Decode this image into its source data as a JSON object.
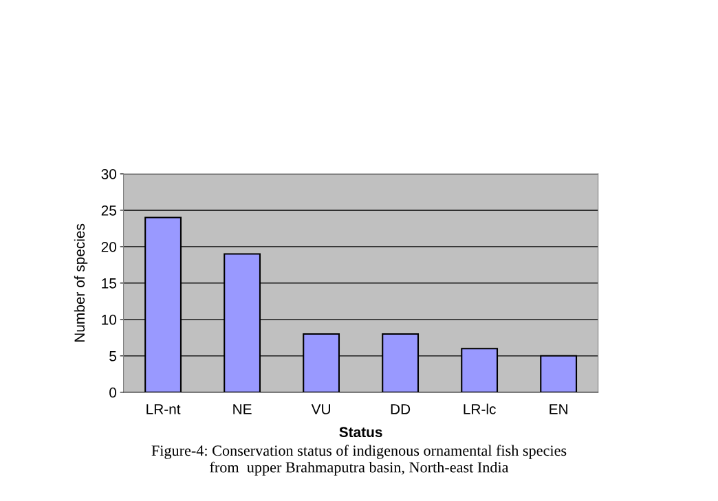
{
  "chart_data": {
    "type": "bar",
    "categories": [
      "LR-nt",
      "NE",
      "VU",
      "DD",
      "LR-lc",
      "EN"
    ],
    "values": [
      24,
      19,
      8,
      8,
      6,
      5
    ],
    "color": "#9999ff",
    "xlabel": "Status",
    "ylabel": "Number of species",
    "ylim": [
      0,
      30
    ],
    "yticks": [
      0,
      5,
      10,
      15,
      20,
      25,
      30
    ],
    "grid": "y",
    "annotations": [
      "Figure-4: Conservation status of indigenous ornamental fish species\nfrom  upper Brahmaputra basin, North-east India"
    ]
  }
}
